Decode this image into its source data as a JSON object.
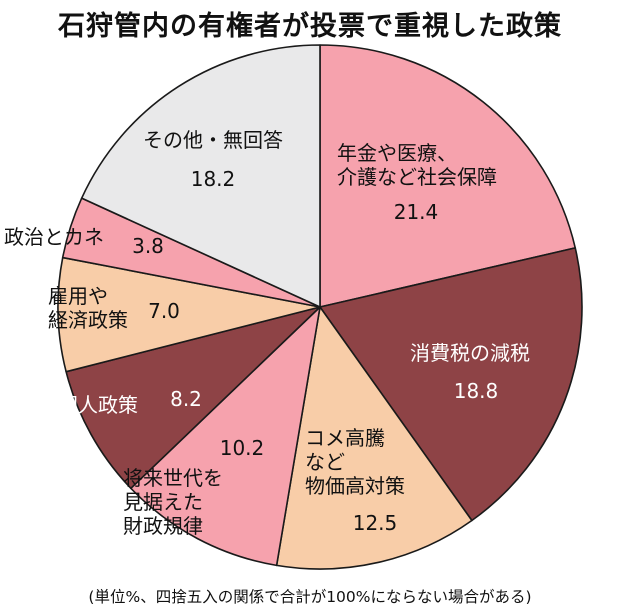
{
  "chart_data": {
    "type": "pie",
    "title": "石狩管内の有権者が投票で重視した政策",
    "note": "(単位%、四捨五入の関係で合計が100%にならない場合がある)",
    "start_angle_deg": 0,
    "direction": "clockwise",
    "slices": [
      {
        "label_lines": [
          "年金や医療、",
          "介護など社会保障"
        ],
        "value": 21.4,
        "value_label": "21.4",
        "color": "#f6a2ad"
      },
      {
        "label_lines": [
          "消費税の減税"
        ],
        "value": 18.8,
        "value_label": "18.8",
        "color": "#8e4346"
      },
      {
        "label_lines": [
          "コメ高騰",
          "など",
          "物価高対策"
        ],
        "value": 12.5,
        "value_label": "12.5",
        "color": "#f8cda8"
      },
      {
        "label_lines": [
          "将来世代を",
          "見据えた",
          "財政規律"
        ],
        "value": 10.2,
        "value_label": "10.2",
        "color": "#f6a2ad"
      },
      {
        "label_lines": [
          "外国人政策"
        ],
        "value": 8.2,
        "value_label": "8.2",
        "color": "#8e4346"
      },
      {
        "label_lines": [
          "雇用や",
          "経済政策"
        ],
        "value": 7.0,
        "value_label": "7.0",
        "color": "#f8cda8"
      },
      {
        "label_lines": [
          "政治とカネ"
        ],
        "value": 3.8,
        "value_label": "3.8",
        "color": "#f6a2ad"
      },
      {
        "label_lines": [
          "その他・無回答"
        ],
        "value": 18.2,
        "value_label": "18.2",
        "color": "#e9e9ea"
      }
    ]
  }
}
